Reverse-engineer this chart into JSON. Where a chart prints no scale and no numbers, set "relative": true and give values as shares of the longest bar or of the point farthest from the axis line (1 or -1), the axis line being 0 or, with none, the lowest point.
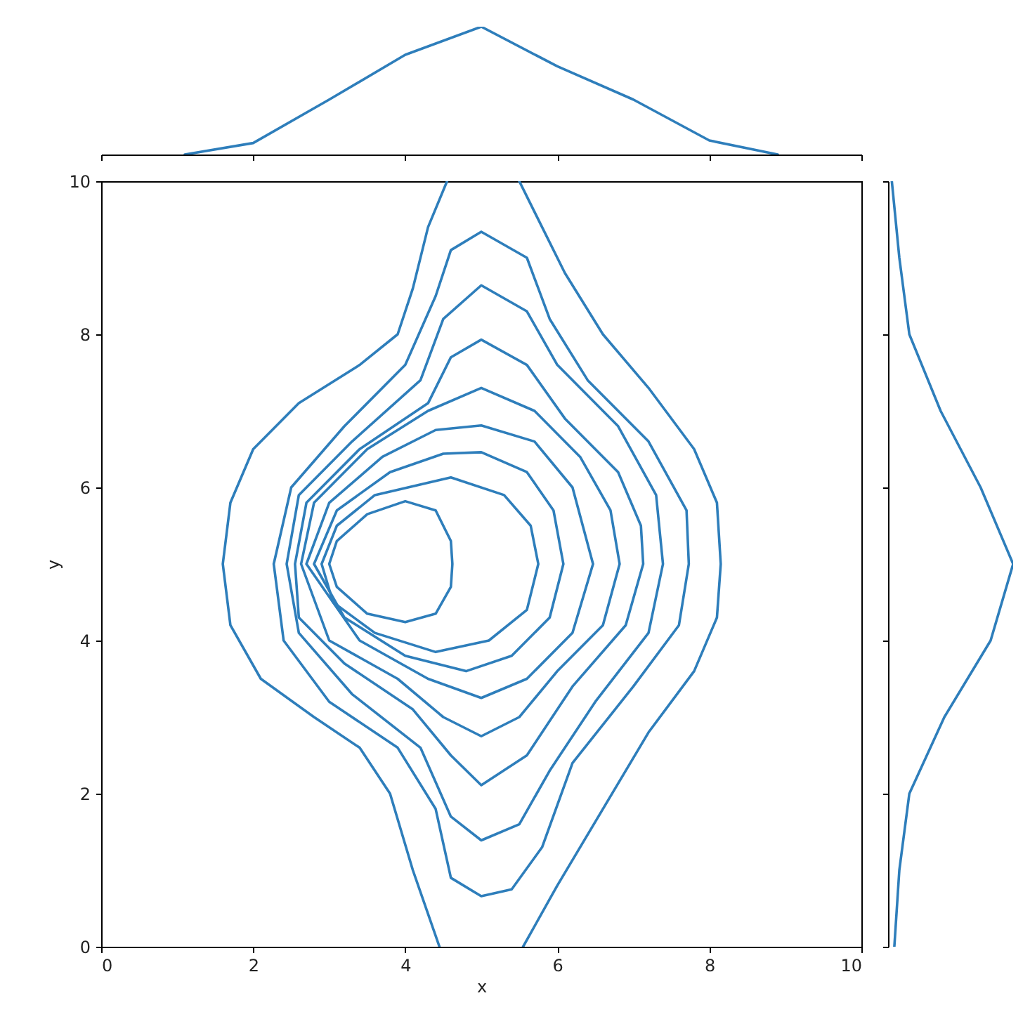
{
  "chart_data": [
    {
      "type": "line",
      "relative": true,
      "xlim": [
        0,
        10
      ],
      "xticks": [
        0,
        2,
        4,
        6,
        8,
        10
      ],
      "tick_labels": false,
      "series": [
        {
          "color": "#2e7ebb",
          "x": [
            1.1,
            2,
            3,
            4,
            5.0,
            6,
            7,
            8,
            8.9
          ],
          "values": [
            0,
            0.09,
            0.43,
            0.78,
            1,
            0.69,
            0.43,
            0.11,
            0
          ]
        }
      ]
    },
    {
      "type": "line",
      "xlabel": "x",
      "ylabel": "y",
      "xlim": [
        0,
        10
      ],
      "ylim": [
        0,
        10
      ],
      "xticks": [
        0,
        2,
        4,
        6,
        8,
        10
      ],
      "yticks": [
        0,
        2,
        4,
        6,
        8,
        10
      ],
      "series": [
        {
          "color": "#2e7ebb",
          "x": [
            4.55,
            4.3,
            4.1,
            3.9,
            3.4,
            2.6,
            2.0,
            1.7,
            1.6,
            1.7,
            2.1,
            2.8,
            3.4,
            3.8,
            4.1,
            4.45,
            5.0,
            5.55,
            6.0,
            6.6,
            7.2,
            7.8,
            8.1,
            8.15,
            8.1,
            7.8,
            7.2,
            6.6,
            6.1,
            5.7,
            5.5
          ],
          "values": [
            10,
            9.4,
            8.6,
            8.0,
            7.6,
            7.1,
            6.5,
            5.8,
            5.0,
            4.2,
            3.5,
            3.0,
            2.6,
            2.0,
            1.0,
            0,
            null,
            0,
            0.8,
            1.8,
            2.8,
            3.6,
            4.3,
            5.0,
            5.8,
            6.5,
            7.3,
            8.0,
            8.8,
            9.6,
            10
          ]
        },
        {
          "color": "#2e7ebb",
          "x": [
            2.27,
            2.5,
            3.2,
            4.0,
            4.4,
            4.6,
            5.0,
            5.6,
            5.9,
            6.4,
            7.2,
            7.7,
            7.73,
            null,
            2.27,
            2.4,
            3.0,
            3.9,
            4.4,
            4.6,
            5.0,
            5.4,
            5.8,
            6.2,
            7.0,
            7.6,
            7.73
          ],
          "values": [
            5.0,
            6.0,
            6.8,
            7.6,
            8.5,
            9.1,
            9.34,
            9.0,
            8.2,
            7.4,
            6.6,
            5.7,
            5.0,
            null,
            5.0,
            4.0,
            3.2,
            2.6,
            1.8,
            0.9,
            0.66,
            0.75,
            1.3,
            2.4,
            3.4,
            4.2,
            5.0
          ]
        },
        {
          "color": "#2e7ebb",
          "x": [
            2.44,
            2.6,
            3.3,
            4.2,
            4.5,
            5.0,
            5.6,
            6.0,
            6.8,
            7.3,
            7.39,
            null,
            2.44,
            2.6,
            3.3,
            4.2,
            4.6,
            5.0,
            5.5,
            5.9,
            6.5,
            7.2,
            7.39
          ],
          "values": [
            5.0,
            5.9,
            6.6,
            7.4,
            8.2,
            8.64,
            8.3,
            7.6,
            6.8,
            5.9,
            5.0,
            null,
            5.0,
            4.1,
            3.3,
            2.6,
            1.7,
            1.39,
            1.6,
            2.3,
            3.2,
            4.1,
            5.0
          ]
        },
        {
          "color": "#2e7ebb",
          "x": [
            2.55,
            2.7,
            3.4,
            4.3,
            4.6,
            5.0,
            5.6,
            6.1,
            6.8,
            7.1,
            7.13,
            null,
            2.55,
            2.6,
            3.2,
            4.1,
            4.6,
            5.0,
            5.6,
            6.2,
            6.9,
            7.13
          ],
          "values": [
            5.0,
            5.8,
            6.5,
            7.1,
            7.7,
            7.93,
            7.6,
            6.9,
            6.2,
            5.5,
            5.0,
            null,
            5.0,
            4.3,
            3.7,
            3.1,
            2.5,
            2.11,
            2.5,
            3.4,
            4.2,
            5.0
          ]
        },
        {
          "color": "#2e7ebb",
          "x": [
            2.63,
            2.8,
            3.5,
            4.3,
            5.0,
            5.7,
            6.3,
            6.7,
            6.82,
            null,
            2.63,
            3.0,
            3.9,
            4.5,
            5.0,
            5.5,
            6.0,
            6.6,
            6.82
          ],
          "values": [
            5.0,
            5.8,
            6.5,
            7.0,
            7.3,
            7.0,
            6.4,
            5.7,
            5.0,
            null,
            5.0,
            4.0,
            3.5,
            3.0,
            2.75,
            3.0,
            3.6,
            4.2,
            5.0
          ]
        },
        {
          "color": "#2e7ebb",
          "x": [
            2.7,
            3.0,
            3.7,
            4.4,
            5.0,
            5.7,
            6.2,
            6.47,
            null,
            2.7,
            3.4,
            4.3,
            5.0,
            5.6,
            6.2,
            6.47
          ],
          "values": [
            5.0,
            5.8,
            6.4,
            6.75,
            6.81,
            6.6,
            6.0,
            5.0,
            null,
            5.0,
            4.0,
            3.5,
            3.25,
            3.5,
            4.1,
            5.0
          ]
        },
        {
          "color": "#2e7ebb",
          "x": [
            2.8,
            3.1,
            3.8,
            4.5,
            5.0,
            5.6,
            5.95,
            6.08,
            null,
            2.8,
            3.2,
            4.0,
            4.8,
            5.4,
            5.9,
            6.08
          ],
          "values": [
            5.0,
            5.7,
            6.2,
            6.44,
            6.46,
            6.2,
            5.7,
            5.0,
            null,
            5.0,
            4.3,
            3.8,
            3.6,
            3.8,
            4.3,
            5.0
          ]
        },
        {
          "color": "#2e7ebb",
          "x": [
            2.9,
            3.1,
            3.6,
            4.6,
            5.3,
            5.65,
            5.75,
            null,
            2.9,
            3.05,
            3.6,
            4.4,
            5.1,
            5.6,
            5.75
          ],
          "values": [
            5.0,
            5.5,
            5.9,
            6.13,
            5.9,
            5.5,
            5.0,
            null,
            5.0,
            4.5,
            4.1,
            3.85,
            4.0,
            4.4,
            5.0
          ]
        },
        {
          "color": "#2e7ebb",
          "x": [
            3.0,
            3.1,
            3.5,
            4.0,
            4.4,
            4.6,
            4.62,
            null,
            3.0,
            3.1,
            3.5,
            4.0,
            4.4,
            4.6,
            4.62
          ],
          "values": [
            5.0,
            5.3,
            5.65,
            5.82,
            5.7,
            5.3,
            5.0,
            null,
            5.0,
            4.7,
            4.35,
            4.24,
            4.35,
            4.7,
            5.0
          ]
        }
      ]
    },
    {
      "type": "line",
      "relative": true,
      "orientation": "horizontal",
      "ylim": [
        0,
        10
      ],
      "yticks": [
        0,
        2,
        4,
        6,
        8,
        10
      ],
      "tick_labels": false,
      "series": [
        {
          "color": "#2e7ebb",
          "x": [
            0,
            1,
            2,
            3,
            4,
            5,
            6,
            7,
            8,
            9,
            10
          ],
          "values": [
            0.05,
            0.09,
            0.17,
            0.45,
            0.82,
            1,
            0.74,
            0.42,
            0.17,
            0.09,
            0.03
          ]
        }
      ]
    }
  ]
}
